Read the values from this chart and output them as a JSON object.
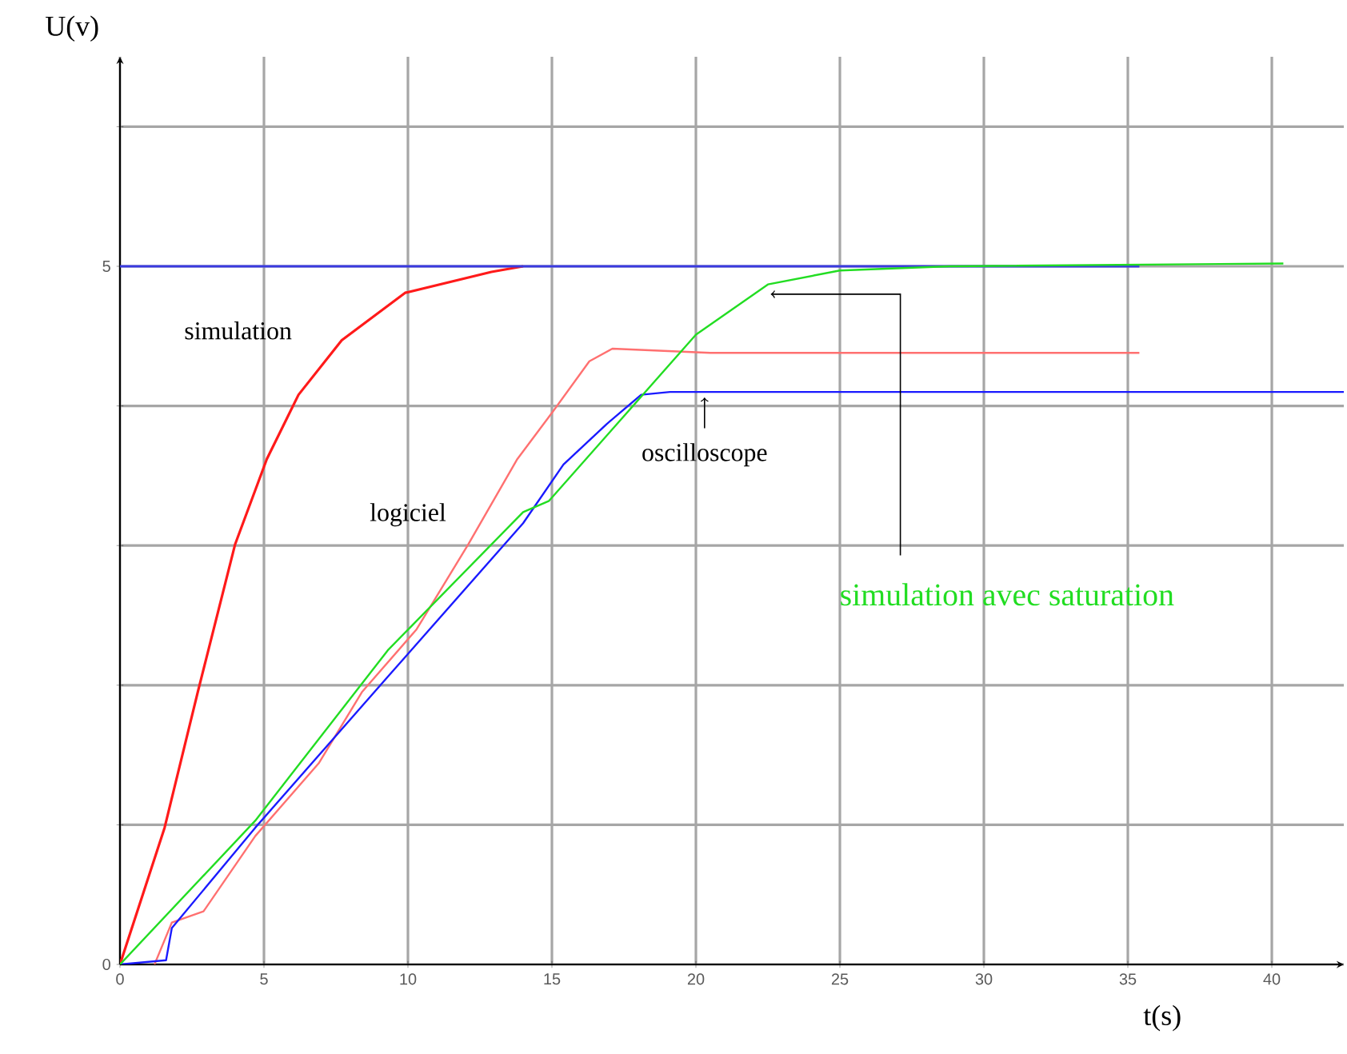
{
  "chart_data": {
    "type": "line",
    "xlabel": "t(s)",
    "ylabel": "U(v)",
    "xlim": [
      0,
      42.5
    ],
    "ylim": [
      0,
      6.5
    ],
    "xticks": [
      0,
      5,
      10,
      15,
      20,
      25,
      30,
      35,
      40
    ],
    "yticks": [
      0,
      {
        "value": 1,
        "label": null
      },
      {
        "value": 2,
        "label": null
      },
      {
        "value": 3,
        "label": null
      },
      {
        "value": 4,
        "label": null
      },
      5,
      {
        "value": 6,
        "label": null
      }
    ],
    "grid": true,
    "legend": false,
    "marker": "none",
    "line_style": "solid",
    "series": [
      {
        "name": "simulation",
        "color": "#ff1a1a",
        "x": [
          0,
          1.55,
          2.7,
          4.0,
          5.1,
          6.2,
          7.7,
          9.9,
          12.9,
          14
        ],
        "values": [
          0,
          0.98,
          1.95,
          3.01,
          3.62,
          4.08,
          4.47,
          4.81,
          4.96,
          5.0
        ]
      },
      {
        "name": "logiciel",
        "color": "#ff7070",
        "x": [
          1.2,
          1.8,
          2.9,
          4.7,
          6.9,
          8.4,
          10.3,
          12.1,
          13.8,
          15.0,
          16.3,
          17.1,
          20.5,
          35.4
        ],
        "values": [
          0,
          0.3,
          0.38,
          0.92,
          1.44,
          1.95,
          2.4,
          3.01,
          3.62,
          3.95,
          4.32,
          4.41,
          4.38,
          4.38
        ]
      },
      {
        "name": "oscilloscope",
        "color": "#1a1aff",
        "x": [
          0,
          1.6,
          1.8,
          4.7,
          9.3,
          14,
          15.4,
          16.9,
          18.1,
          19.1,
          42.5
        ],
        "values": [
          0,
          0.03,
          0.26,
          0.98,
          2.06,
          3.16,
          3.58,
          3.87,
          4.08,
          4.1,
          4.1
        ]
      },
      {
        "color": "#3a3ae0",
        "x": [
          0,
          35.4
        ],
        "values": [
          5,
          5
        ]
      },
      {
        "name": "simulation avec saturation",
        "color": "#22dd22",
        "x": [
          0,
          4.7,
          9.3,
          14,
          14.9,
          20,
          22.5,
          25,
          28.8,
          40.4
        ],
        "values": [
          0,
          1.03,
          2.25,
          3.24,
          3.32,
          4.51,
          4.87,
          4.97,
          5.0,
          5.02
        ]
      }
    ]
  }
}
